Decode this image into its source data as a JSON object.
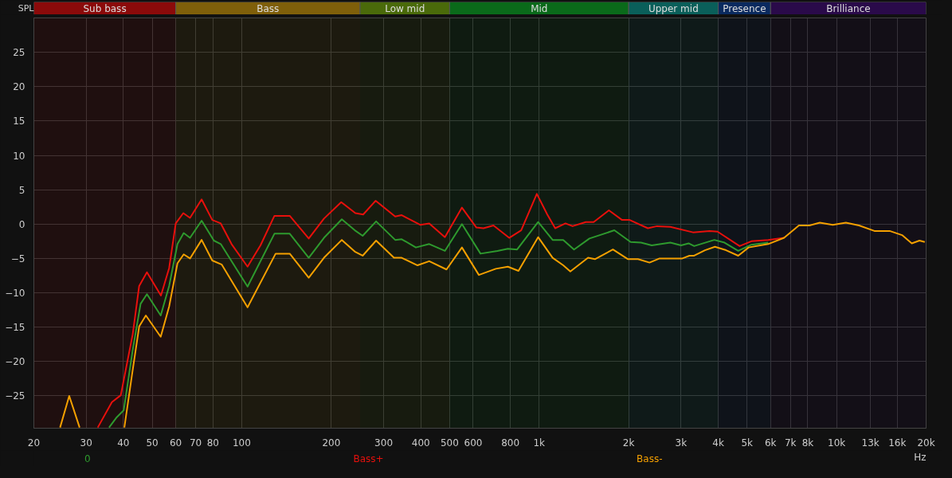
{
  "chart_data": {
    "type": "line",
    "ylabel": "SPL",
    "xlim": [
      20,
      20000
    ],
    "ylim": [
      -29.7,
      30
    ],
    "xticks": [
      20,
      30,
      40,
      50,
      60,
      70,
      80,
      100,
      200,
      300,
      400,
      500,
      600,
      800,
      {
        "value": 1000,
        "label": "1k"
      },
      {
        "value": 2000,
        "label": "2k"
      },
      {
        "value": 3000,
        "label": "3k"
      },
      {
        "value": 4000,
        "label": "4k"
      },
      {
        "value": 5000,
        "label": "5k"
      },
      {
        "value": 6000,
        "label": "6k"
      },
      {
        "value": 7000,
        "label": "7k"
      },
      {
        "value": 8000,
        "label": "8k"
      },
      {
        "value": 10000,
        "label": "10k"
      },
      {
        "value": 13000,
        "label": "13k"
      },
      {
        "value": 16000,
        "label": "16k"
      },
      {
        "value": 20000,
        "label": "20k"
      }
    ],
    "xlabel": "Hz",
    "yticks": [
      -25,
      -20,
      -15,
      -10,
      -5,
      0,
      5,
      10,
      15,
      20,
      25
    ],
    "log": "x",
    "grid": true,
    "bands": [
      {
        "axis": "x",
        "from": 20,
        "to": 60,
        "label": "Sub bass",
        "color": "#8b0a0a"
      },
      {
        "axis": "x",
        "from": 60,
        "to": 250,
        "label": "Bass",
        "color": "#7f5f0a"
      },
      {
        "axis": "x",
        "from": 250,
        "to": 500,
        "label": "Low mid",
        "color": "#4a6a0a"
      },
      {
        "axis": "x",
        "from": 500,
        "to": 2000,
        "label": "Mid",
        "color": "#0a6a1a"
      },
      {
        "axis": "x",
        "from": 2000,
        "to": 4000,
        "label": "Upper mid",
        "color": "#0a5f5a"
      },
      {
        "axis": "x",
        "from": 4000,
        "to": 6000,
        "label": "Presence",
        "color": "#0a2a5f"
      },
      {
        "axis": "x",
        "from": 6000,
        "to": 20000,
        "label": "Brilliance",
        "color": "#2a0a4a"
      }
    ],
    "series": [
      {
        "name": "0",
        "color": "#2e9a2e",
        "x": [
          35.8,
          38.0,
          40.1,
          43,
          45.7,
          48,
          53.4,
          57,
          60.8,
          63.8,
          67,
          73.3,
          80.6,
          85,
          104.6,
          128.8,
          145,
          168,
          189,
          217,
          240,
          255,
          283,
          328,
          345,
          385,
          427,
          482,
          550,
          635,
          724,
          785,
          843,
          992,
          1110,
          1205,
          1310,
          1476,
          1790,
          2030,
          2200,
          2390,
          2760,
          3000,
          3180,
          3320,
          3880,
          4200,
          4670,
          5170,
          5890
        ],
        "values": [
          -29.6,
          -28.1,
          -27.1,
          -18.3,
          -11.6,
          -10.2,
          -13.3,
          -9.0,
          -2.9,
          -1.3,
          -2.0,
          0.5,
          -2.4,
          -2.9,
          -9.1,
          -1.4,
          -1.4,
          -4.9,
          -2.0,
          0.7,
          -0.9,
          -1.7,
          0.4,
          -2.3,
          -2.2,
          -3.4,
          -2.9,
          -3.9,
          0.0,
          -4.3,
          -3.9,
          -3.6,
          -3.7,
          0.3,
          -2.3,
          -2.3,
          -3.7,
          -2.1,
          -0.9,
          -2.6,
          -2.7,
          -3.1,
          -2.7,
          -3.1,
          -2.8,
          -3.2,
          -2.3,
          -2.7,
          -3.9,
          -3.0,
          -2.7
        ]
      },
      {
        "name": "Bass+",
        "color": "#e8100c",
        "x": [
          32.8,
          36.6,
          39.2,
          43,
          45.2,
          48,
          53.5,
          57,
          60,
          63.6,
          67,
          73.3,
          79.6,
          85,
          92.4,
          104.6,
          115.6,
          128.8,
          145,
          168,
          189,
          216,
          241,
          256,
          282,
          328,
          345,
          398,
          427,
          482,
          550,
          615,
          650,
          702,
          793,
          870,
          982,
          1065,
          1132,
          1226,
          1295,
          1434,
          1525,
          1716,
          1900,
          2015,
          2320,
          2490,
          2760,
          3290,
          3740,
          3980,
          4720,
          5170,
          5890,
          6660
        ],
        "values": [
          -29.6,
          -25.9,
          -24.9,
          -16,
          -9,
          -7.0,
          -10.4,
          -6.4,
          0.1,
          1.6,
          0.9,
          3.6,
          0.6,
          0.1,
          -2.9,
          -6.2,
          -3.1,
          1.2,
          1.2,
          -2.1,
          0.8,
          3.2,
          1.6,
          1.4,
          3.4,
          1.1,
          1.3,
          -0.1,
          0.1,
          -1.9,
          2.4,
          -0.5,
          -0.6,
          -0.2,
          -2.0,
          -0.9,
          4.4,
          1.4,
          -0.6,
          0.1,
          -0.3,
          0.3,
          0.3,
          2.0,
          0.6,
          0.6,
          -0.6,
          -0.3,
          -0.4,
          -1.2,
          -1.0,
          -1.1,
          -3.2,
          -2.5,
          -2.3,
          -2.0
        ]
      },
      {
        "name": "Bass-",
        "color": "#f5a000",
        "x": [
          24.5,
          26.3,
          28.5,
          34,
          40.3,
          43,
          45.2,
          47.6,
          53.4,
          57,
          60.8,
          63.8,
          67,
          73.3,
          79.6,
          85.7,
          104.6,
          130,
          145,
          168,
          189,
          217,
          240,
          255,
          283,
          325,
          345,
          390,
          427,
          488,
          550,
          627,
          715,
          785,
          852,
          992,
          1110,
          1205,
          1273,
          1460,
          1540,
          1770,
          1990,
          2150,
          2350,
          2540,
          2760,
          3030,
          3200,
          3320,
          3610,
          3900,
          4250,
          4670,
          5060,
          5890,
          6660,
          7470,
          8100,
          8780,
          9710,
          10750,
          11900,
          13400,
          15080,
          16600,
          17900,
          19000,
          19800
        ],
        "values": [
          -29.6,
          -25.0,
          -29.6,
          null,
          -29.6,
          -21.2,
          -14.9,
          -13.3,
          -16.4,
          -12.0,
          -5.7,
          -4.4,
          -5.0,
          -2.3,
          -5.3,
          -5.9,
          -12.1,
          -4.3,
          -4.3,
          -7.8,
          -4.9,
          -2.3,
          -4.0,
          -4.6,
          -2.4,
          -4.9,
          -4.9,
          -6.0,
          -5.4,
          -6.6,
          -3.4,
          -7.4,
          -6.5,
          -6.2,
          -6.8,
          -1.9,
          -4.9,
          -6.0,
          -6.9,
          -4.9,
          -5.1,
          -3.7,
          -5.1,
          -5.1,
          -5.6,
          -5.0,
          -5.0,
          -5.0,
          -4.6,
          -4.6,
          -3.8,
          -3.3,
          -3.8,
          -4.6,
          -3.4,
          -2.9,
          -2.0,
          -0.2,
          -0.2,
          0.2,
          -0.1,
          0.2,
          -0.2,
          -1.0,
          -1.0,
          -1.6,
          -2.8,
          -2.4,
          -2.6
        ]
      }
    ]
  }
}
